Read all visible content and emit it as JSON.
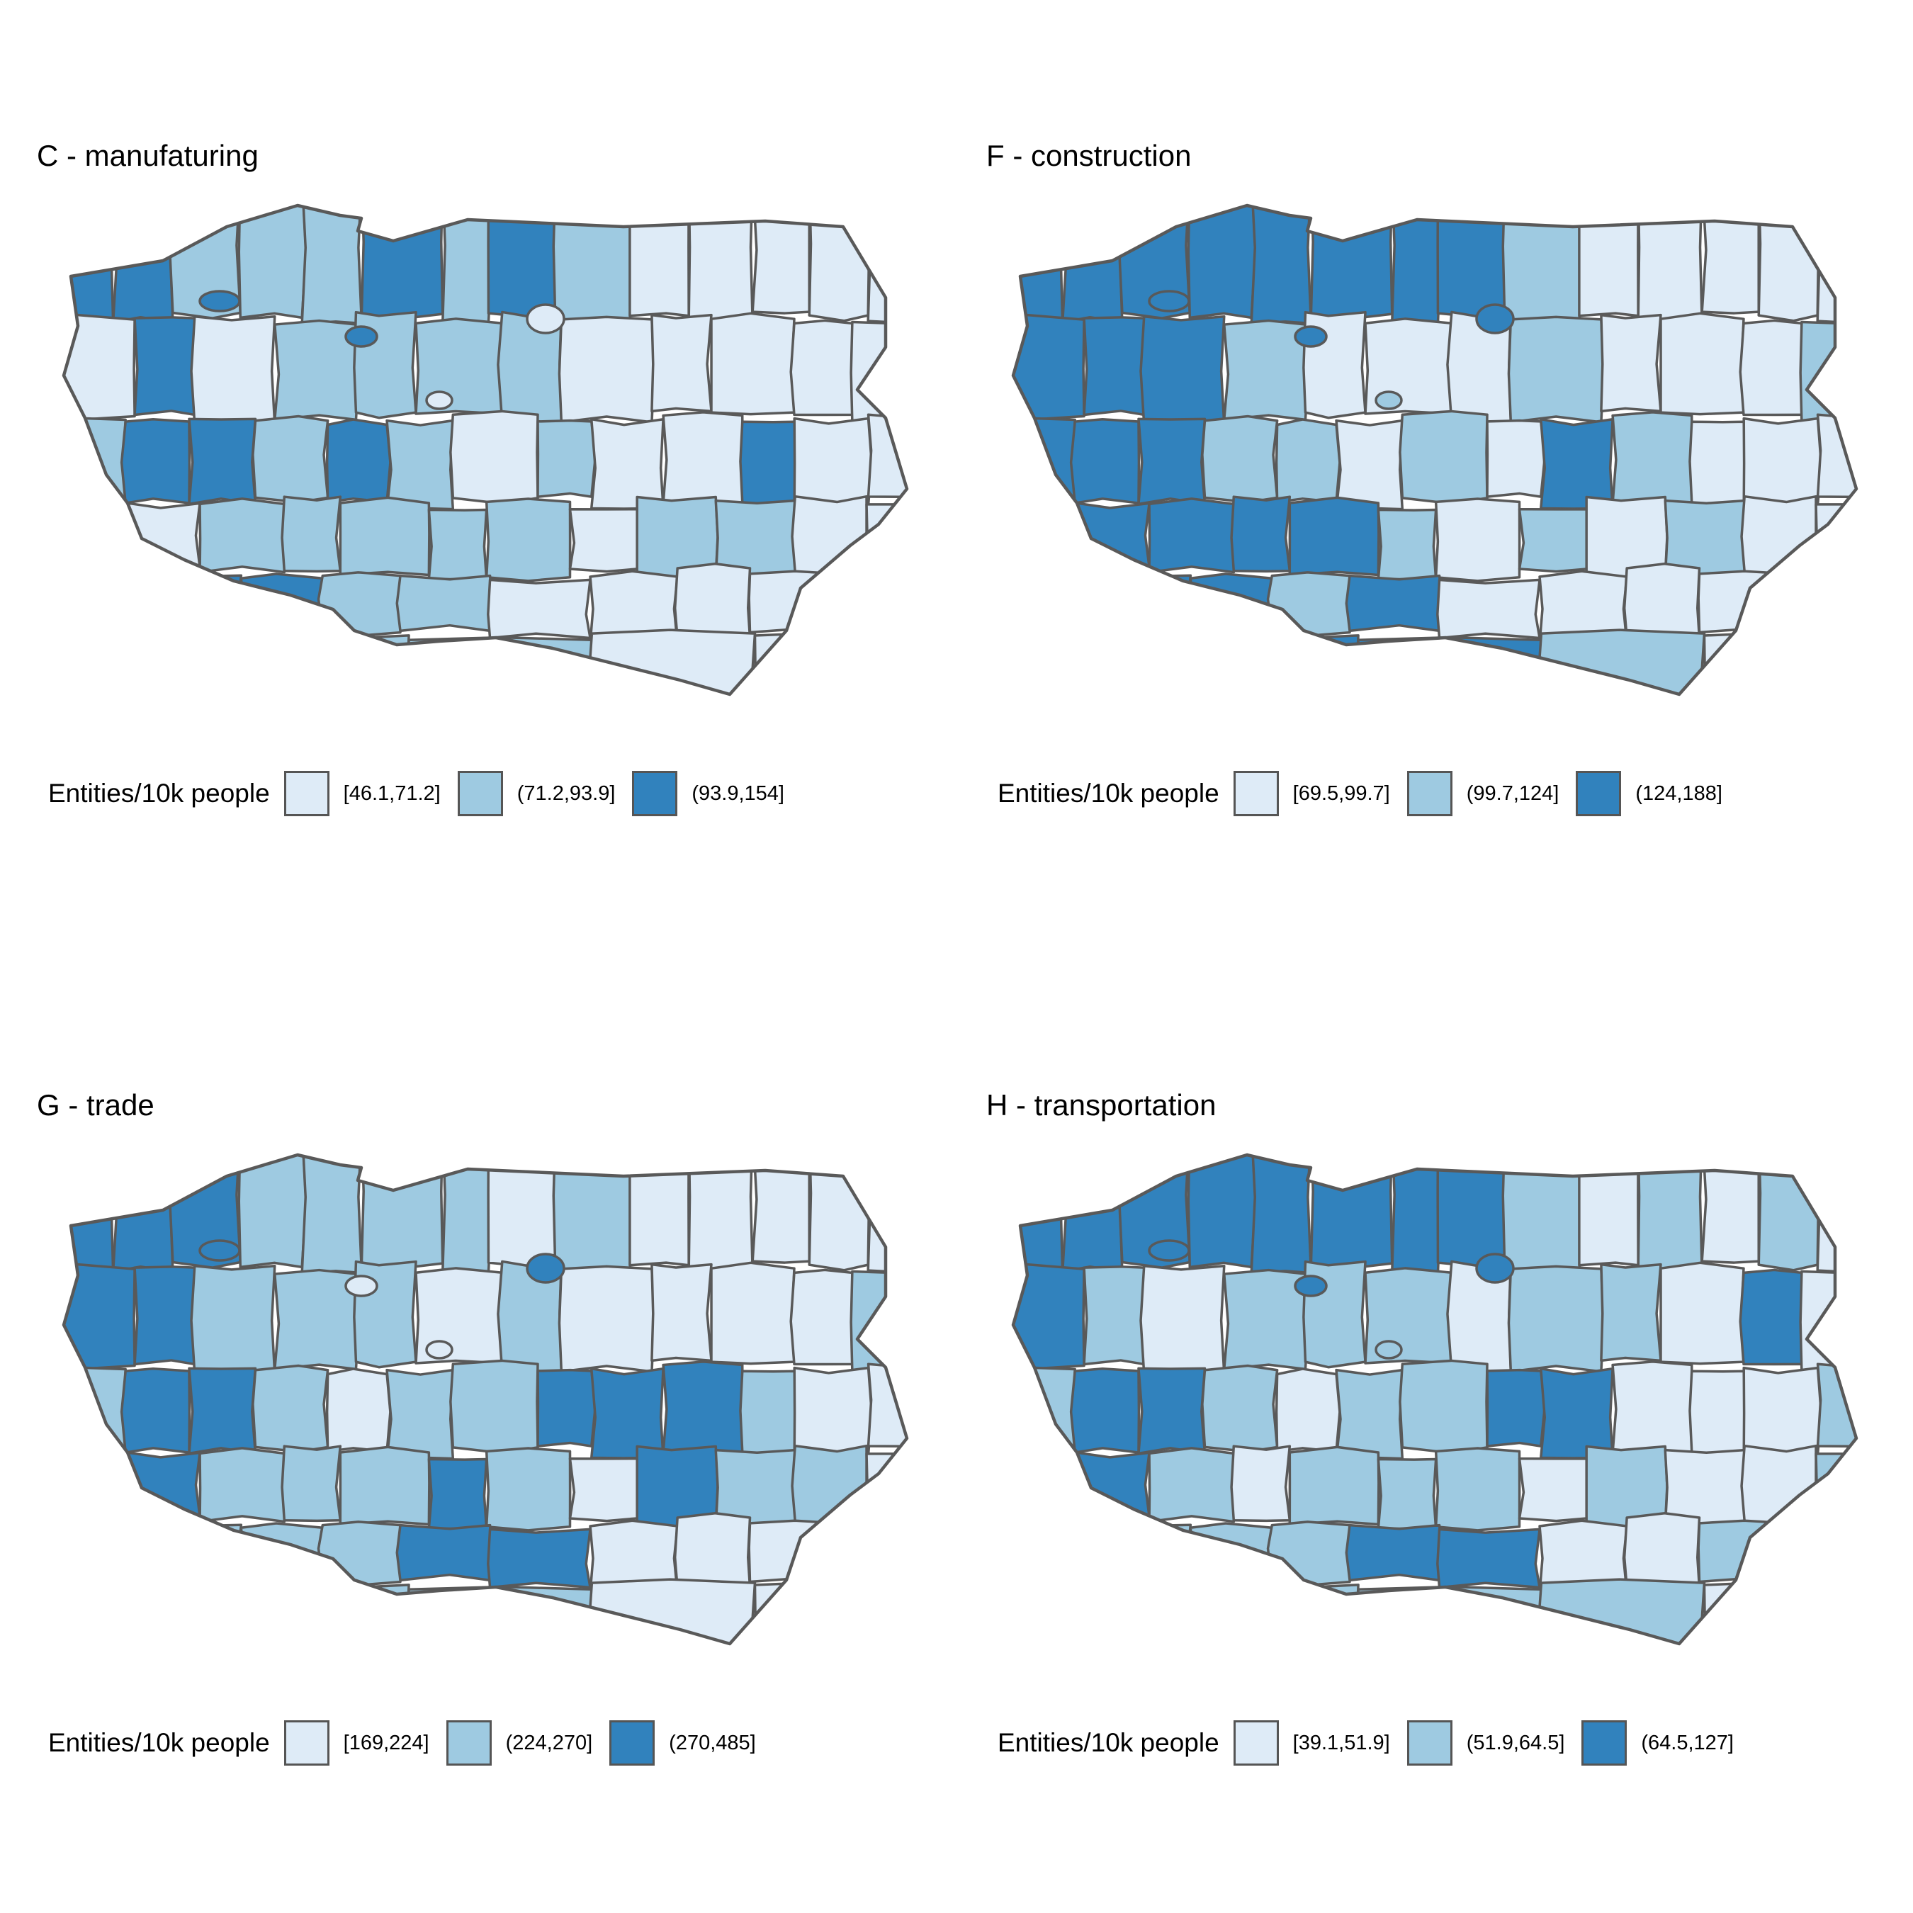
{
  "palette": [
    "#deebf7",
    "#9ecae1",
    "#3182bd"
  ],
  "legend_title": "Entities/10k people",
  "panels": [
    {
      "title": "C - manufaturing",
      "legend_labels": [
        "[46.1,71.2]",
        "(71.2,93.9]",
        "(93.9,154]"
      ],
      "class_by_region": [
        2,
        2,
        1,
        1,
        1,
        2,
        1,
        2,
        1,
        0,
        0,
        0,
        0,
        0,
        0,
        2,
        0,
        1,
        1,
        1,
        1,
        0,
        0,
        0,
        0,
        0,
        1,
        2,
        2,
        1,
        2,
        1,
        0,
        1,
        0,
        0,
        2,
        0,
        0,
        1,
        0,
        1,
        1,
        1,
        1,
        1,
        0,
        1,
        1,
        0,
        0,
        2,
        2,
        2,
        1,
        1,
        0,
        0,
        0,
        0,
        0,
        1,
        1,
        1,
        0,
        0
      ]
    },
    {
      "title": "F - construction",
      "legend_labels": [
        "[69.5,99.7]",
        "(99.7,124]",
        "(124,188]"
      ],
      "class_by_region": [
        2,
        2,
        2,
        2,
        2,
        2,
        2,
        2,
        1,
        0,
        0,
        0,
        0,
        0,
        2,
        2,
        2,
        1,
        0,
        0,
        0,
        1,
        0,
        0,
        0,
        1,
        2,
        2,
        2,
        1,
        1,
        0,
        1,
        0,
        2,
        1,
        0,
        0,
        0,
        2,
        2,
        2,
        2,
        2,
        1,
        0,
        1,
        0,
        1,
        0,
        0,
        1,
        2,
        2,
        1,
        2,
        0,
        0,
        0,
        0,
        0,
        2,
        2,
        2,
        1,
        0
      ]
    },
    {
      "title": "G - trade",
      "legend_labels": [
        "[169,224]",
        "(224,270]",
        "(270,485]"
      ],
      "class_by_region": [
        2,
        2,
        2,
        1,
        1,
        1,
        1,
        0,
        1,
        0,
        0,
        0,
        0,
        0,
        2,
        2,
        1,
        1,
        1,
        0,
        1,
        0,
        0,
        0,
        0,
        1,
        1,
        2,
        2,
        1,
        0,
        1,
        1,
        2,
        2,
        2,
        1,
        0,
        0,
        1,
        2,
        1,
        1,
        1,
        2,
        1,
        0,
        2,
        1,
        1,
        0,
        2,
        1,
        1,
        1,
        2,
        2,
        0,
        0,
        0,
        0,
        2,
        1,
        1,
        0,
        0
      ]
    },
    {
      "title": "H - transportation",
      "legend_labels": [
        "[39.1,51.9]",
        "(51.9,64.5]",
        "(64.5,127]"
      ],
      "class_by_region": [
        2,
        2,
        2,
        2,
        2,
        2,
        2,
        2,
        1,
        0,
        1,
        0,
        1,
        0,
        2,
        1,
        0,
        1,
        1,
        1,
        0,
        1,
        1,
        0,
        2,
        0,
        1,
        2,
        2,
        1,
        0,
        1,
        1,
        2,
        2,
        0,
        0,
        0,
        1,
        1,
        2,
        1,
        0,
        1,
        1,
        1,
        0,
        1,
        0,
        0,
        1,
        1,
        1,
        1,
        1,
        2,
        2,
        0,
        0,
        1,
        0,
        2,
        1,
        1,
        1,
        0
      ]
    }
  ]
}
